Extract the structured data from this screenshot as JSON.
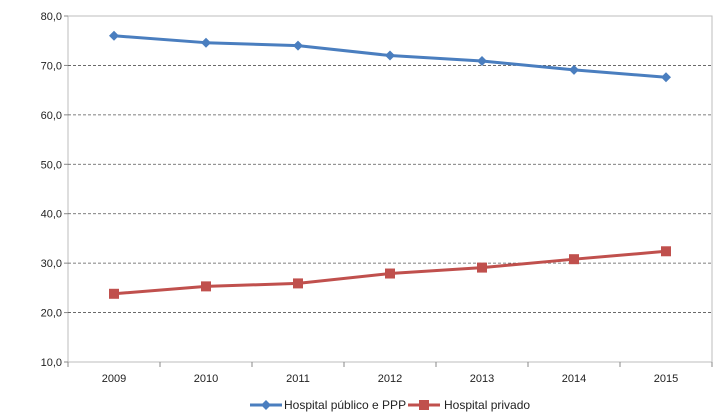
{
  "chart_data": {
    "type": "line",
    "title": "",
    "xlabel": "",
    "ylabel": "",
    "categories": [
      "2009",
      "2010",
      "2011",
      "2012",
      "2013",
      "2014",
      "2015"
    ],
    "ylim": [
      10,
      80
    ],
    "yticks": [
      "80,0",
      "70,0",
      "60,0",
      "50,0",
      "40,0",
      "30,0",
      "20,0",
      "10,0"
    ],
    "ytick_values": [
      80,
      70,
      60,
      50,
      40,
      30,
      20,
      10
    ],
    "grid": true,
    "legend_position": "bottom",
    "series": [
      {
        "name": "Hospital público e PPP",
        "color": "#4a7ebf",
        "marker": "diamond",
        "values": [
          76.0,
          74.6,
          74.0,
          72.0,
          70.9,
          69.1,
          67.6
        ]
      },
      {
        "name": "Hospital privado",
        "color": "#c0504d",
        "marker": "square",
        "values": [
          23.8,
          25.3,
          25.9,
          27.9,
          29.1,
          30.8,
          32.4
        ]
      }
    ]
  }
}
